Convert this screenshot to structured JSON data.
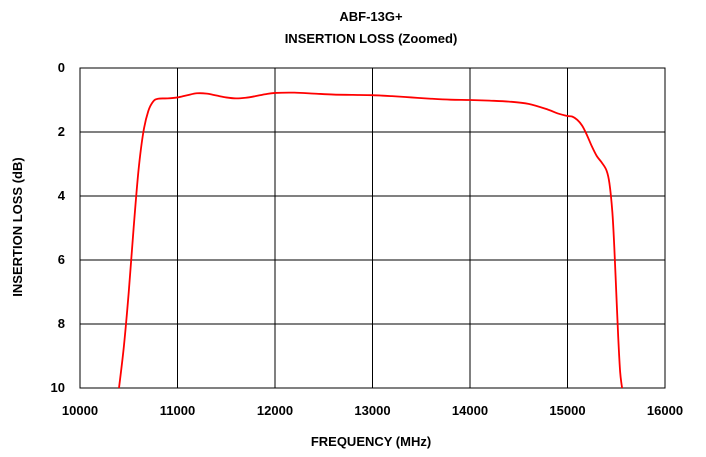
{
  "chart_data": {
    "type": "line",
    "title": "ABF-13G+",
    "subtitle": "INSERTION LOSS (Zoomed)",
    "xlabel": "FREQUENCY (MHz)",
    "ylabel": "INSERTION LOSS (dB)",
    "xlim": [
      10000,
      16000
    ],
    "ylim": [
      0,
      10
    ],
    "y_inverted": true,
    "grid": true,
    "x_ticks": [
      10000,
      11000,
      12000,
      13000,
      14000,
      15000,
      16000
    ],
    "y_ticks": [
      0,
      2,
      4,
      6,
      8,
      10
    ],
    "x_tick_labels": [
      "10000",
      "11000",
      "12000",
      "13000",
      "14000",
      "15000",
      "16000"
    ],
    "y_tick_labels": [
      "0",
      "2",
      "4",
      "6",
      "8",
      "10"
    ],
    "series": [
      {
        "color": "#ff0000",
        "x": [
          10400,
          10450,
          10500,
          10550,
          10600,
          10650,
          10700,
          10750,
          10800,
          10900,
          11000,
          11100,
          11200,
          11300,
          11400,
          11500,
          11600,
          11700,
          11800,
          11900,
          12000,
          12200,
          12400,
          12600,
          12800,
          13000,
          13200,
          13400,
          13600,
          13800,
          14000,
          14200,
          14400,
          14600,
          14800,
          14900,
          15000,
          15050,
          15100,
          15150,
          15200,
          15250,
          15300,
          15350,
          15400,
          15430,
          15460,
          15480,
          15500,
          15520,
          15540,
          15560
        ],
        "y": [
          10.0,
          8.7,
          7.0,
          5.0,
          3.2,
          2.0,
          1.35,
          1.05,
          0.96,
          0.95,
          0.92,
          0.85,
          0.79,
          0.8,
          0.86,
          0.92,
          0.95,
          0.93,
          0.88,
          0.82,
          0.78,
          0.77,
          0.8,
          0.83,
          0.84,
          0.85,
          0.88,
          0.92,
          0.96,
          0.99,
          1.0,
          1.02,
          1.05,
          1.12,
          1.3,
          1.42,
          1.5,
          1.52,
          1.62,
          1.8,
          2.1,
          2.45,
          2.75,
          2.95,
          3.2,
          3.6,
          4.5,
          5.6,
          7.0,
          8.4,
          9.5,
          10.0
        ]
      }
    ]
  }
}
